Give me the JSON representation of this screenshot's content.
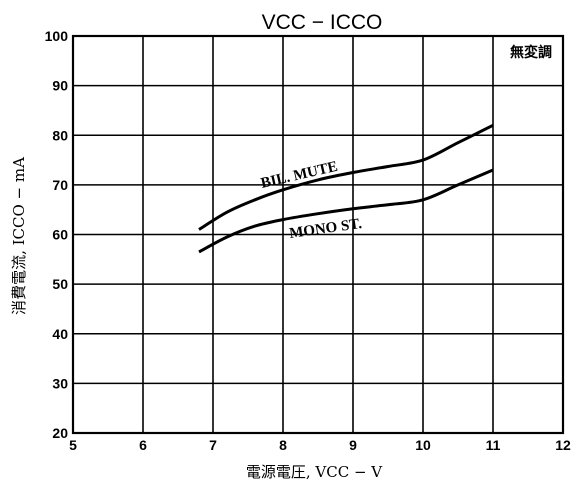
{
  "chart_data": {
    "type": "line",
    "title": "VCC − ICCO",
    "xlabel": "電源電圧, VCC − V",
    "ylabel": "消費電流, ICCO − mA",
    "xlim": [
      5,
      12
    ],
    "ylim": [
      20,
      100
    ],
    "xticks": [
      "5",
      "6",
      "7",
      "8",
      "9",
      "10",
      "11",
      "12"
    ],
    "yticks": [
      "20",
      "30",
      "40",
      "50",
      "60",
      "70",
      "80",
      "90",
      "100"
    ],
    "grid": true,
    "annotation": "無変調",
    "series": [
      {
        "name": "BIL. MUTE",
        "x": [
          6.8,
          7.2,
          7.6,
          8.0,
          8.5,
          9.0,
          9.5,
          10.0,
          10.5,
          11.0
        ],
        "y": [
          61,
          64.5,
          67,
          69,
          71,
          72.5,
          73.7,
          75,
          78.5,
          82
        ]
      },
      {
        "name": "MONO ST.",
        "x": [
          6.8,
          7.2,
          7.6,
          8.0,
          8.5,
          9.0,
          9.5,
          10.0,
          10.5,
          11.0
        ],
        "y": [
          56.5,
          59.5,
          61.7,
          63,
          64.2,
          65.2,
          66,
          67,
          70,
          73
        ]
      }
    ],
    "labels": {
      "series_0": "BIL.  MUTE",
      "series_1": "MONO   ST."
    }
  }
}
